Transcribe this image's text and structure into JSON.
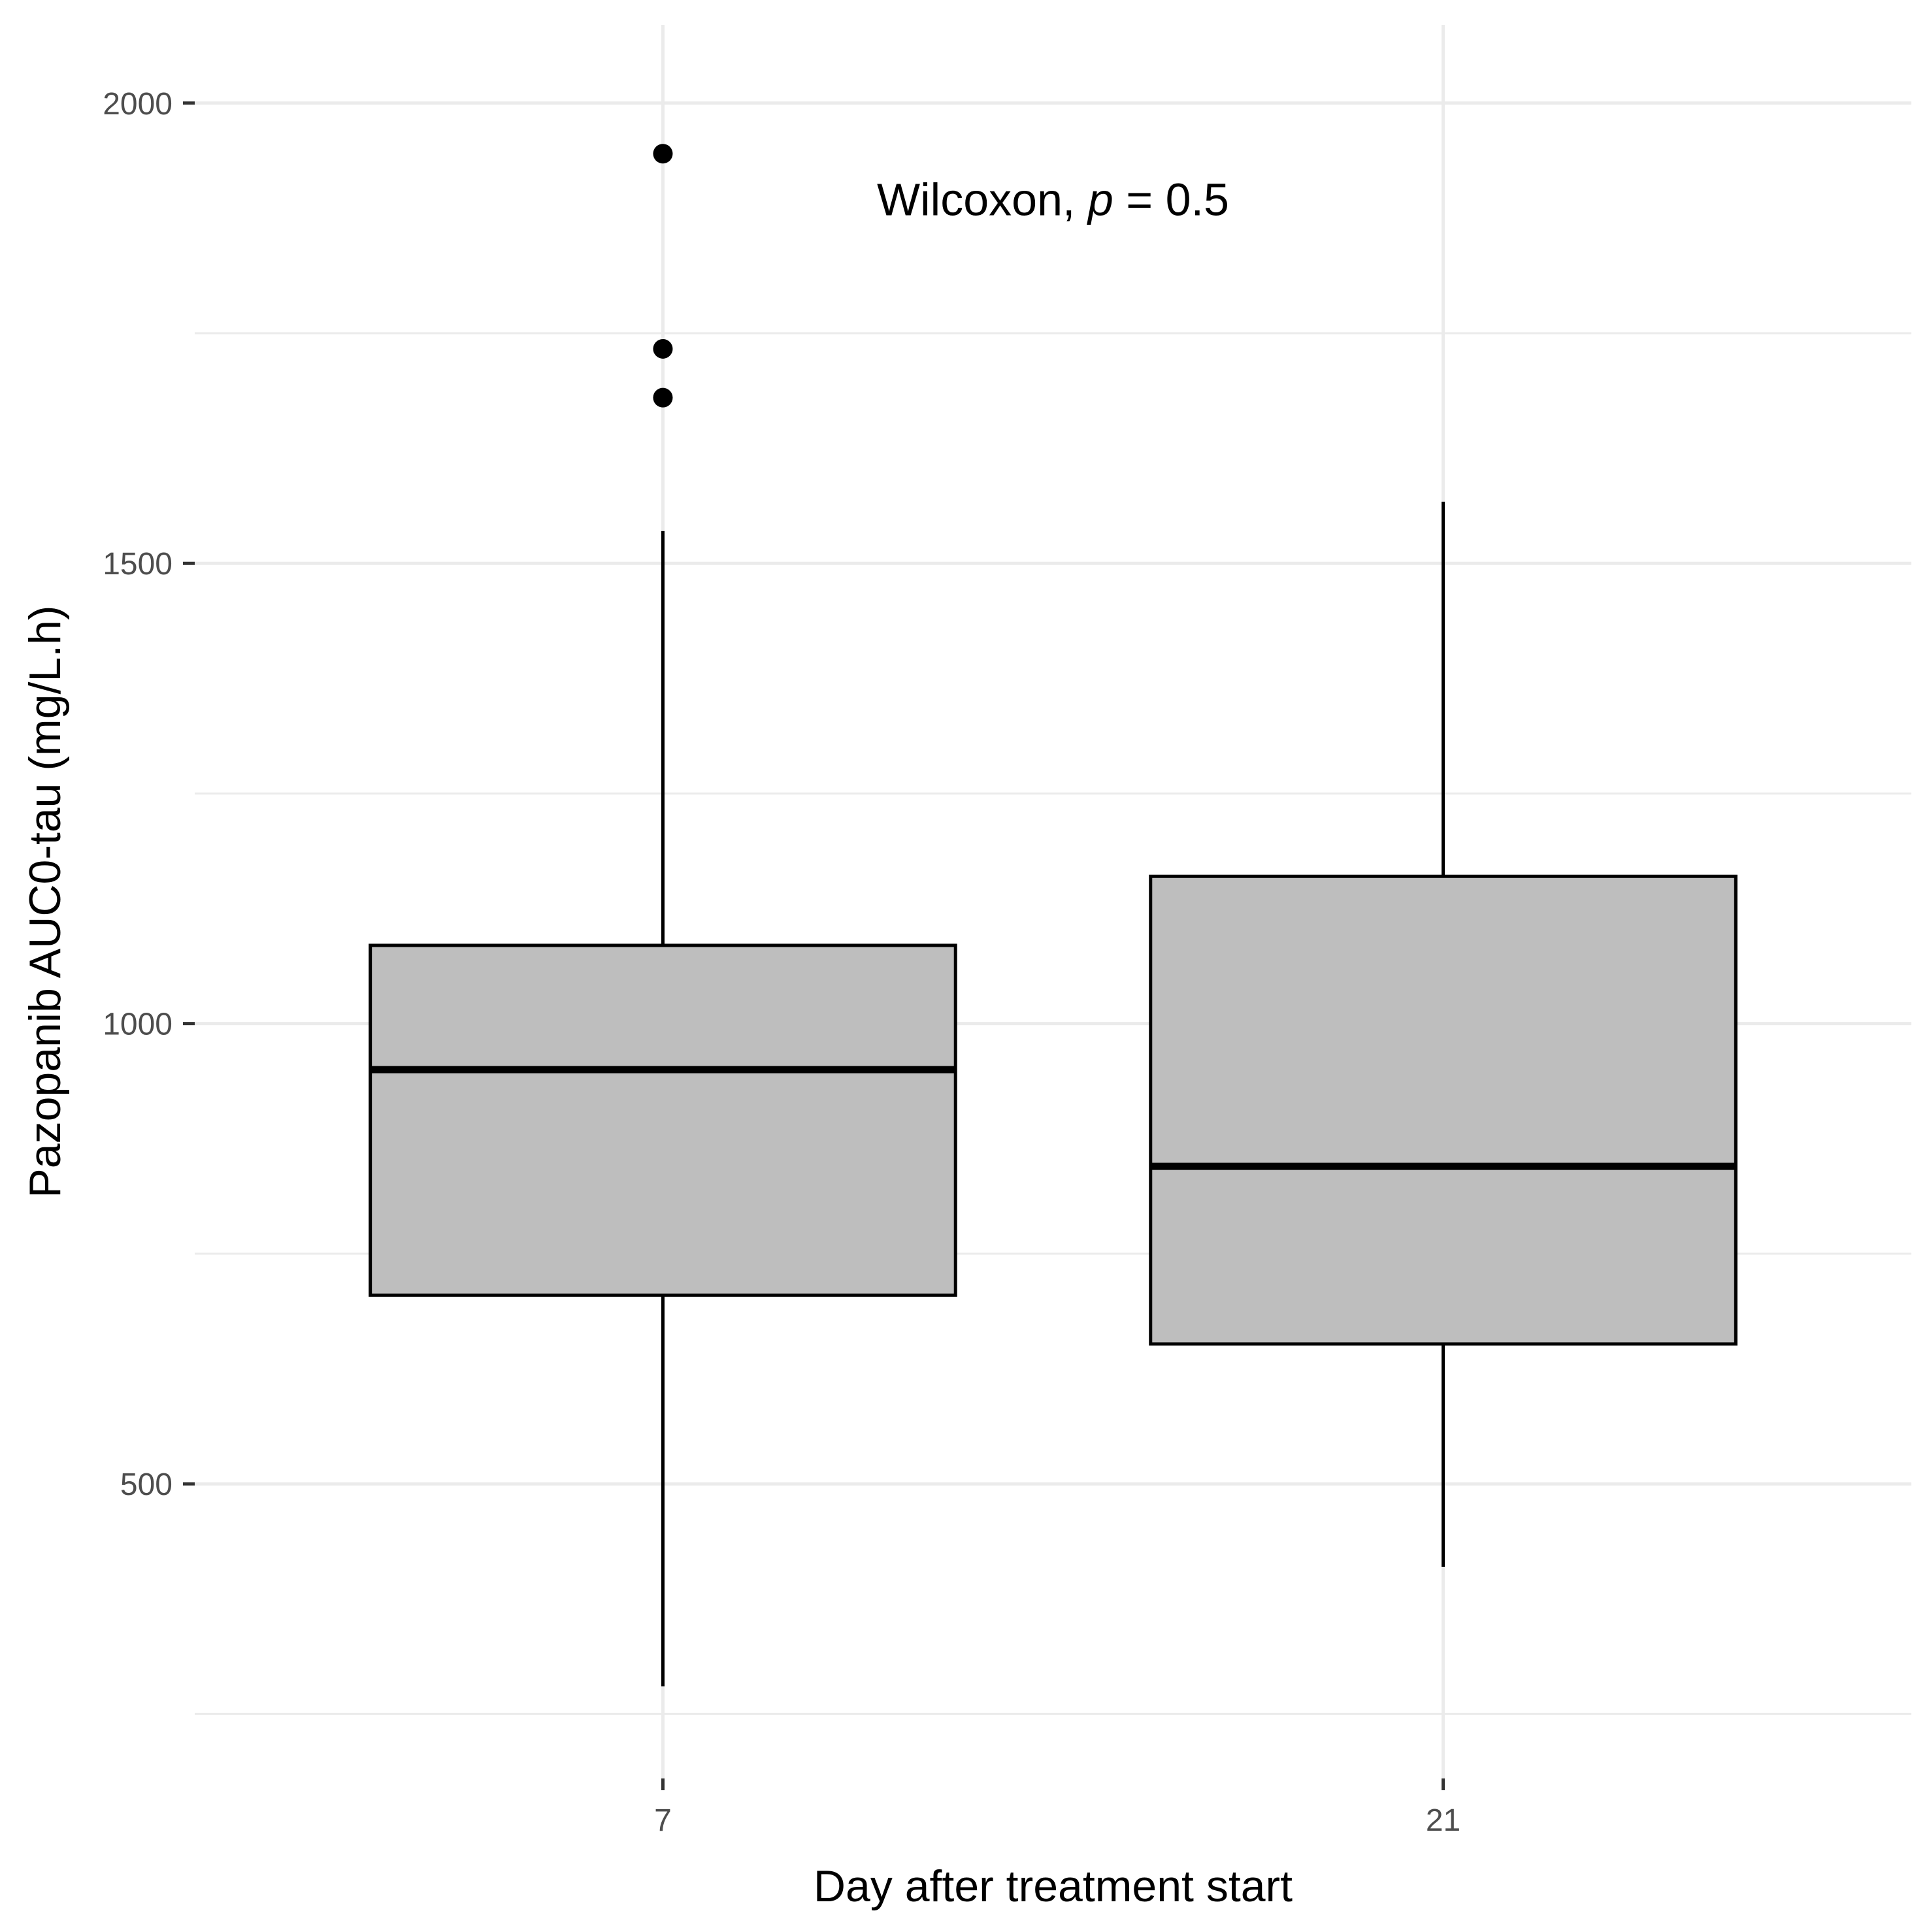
{
  "chart_data": {
    "type": "box",
    "title": "",
    "xlabel": "Day after treatment start",
    "ylabel": "Pazopanib AUC0-tau (mg/L.h)",
    "ylim": [
      180,
      2085
    ],
    "y_ticks": [
      500,
      1000,
      1500,
      2000
    ],
    "y_tick_labels": [
      "500",
      "1000",
      "1500",
      "2000"
    ],
    "y_minor_ticks": [
      250,
      750,
      1250,
      1750
    ],
    "grid": true,
    "categories": [
      "7",
      "21"
    ],
    "boxes": [
      {
        "category": "7",
        "whisker_low": 280,
        "q1": 705,
        "median": 950,
        "q3": 1085,
        "whisker_high": 1535,
        "outliers": [
          1680,
          1733,
          1945
        ]
      },
      {
        "category": "21",
        "whisker_low": 410,
        "q1": 652,
        "median": 845,
        "q3": 1160,
        "whisker_high": 1567,
        "outliers": []
      }
    ],
    "colors": {
      "box_fill": "#bebebe",
      "box_stroke": "#000000",
      "grid": "#ebebeb"
    },
    "annotation": {
      "prefix": "Wilcoxon, ",
      "italic": "p",
      "suffix": " = 0.5",
      "y": 1895
    }
  }
}
